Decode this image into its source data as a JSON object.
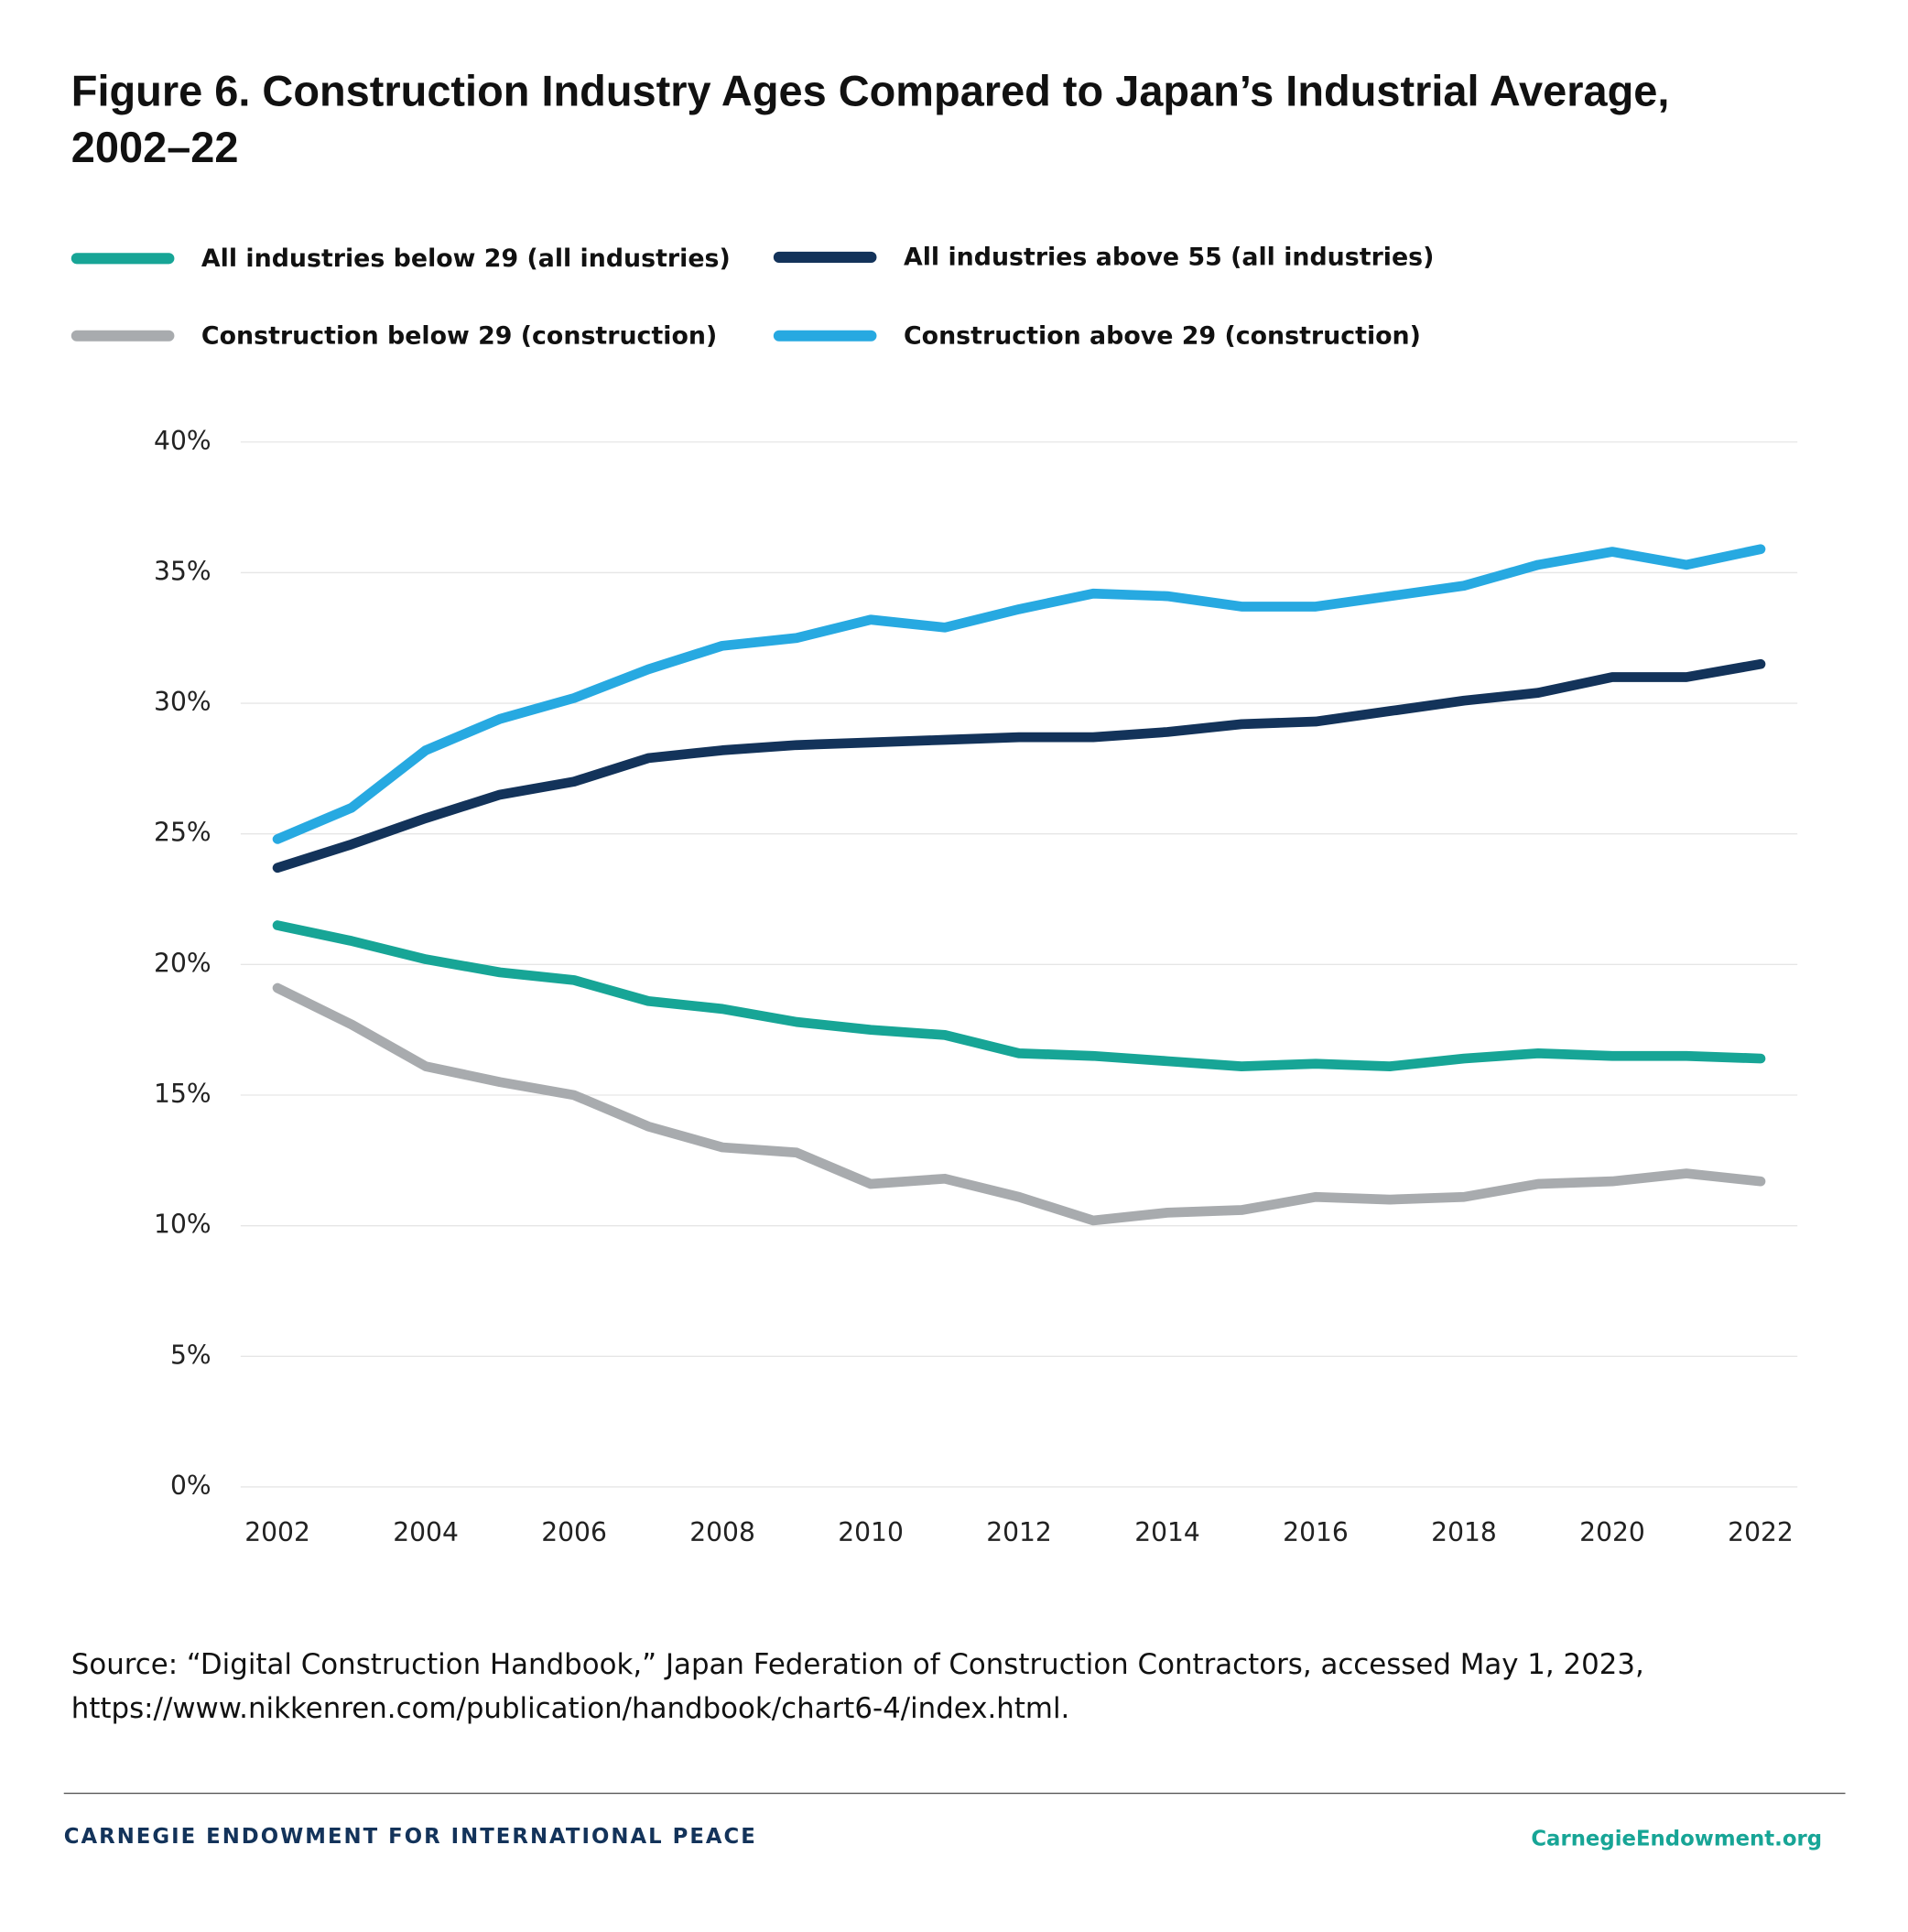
{
  "chart_data": {
    "type": "line",
    "title": "Figure 6. Construction Industry Ages Compared to Japan’s Industrial Average, 2002–22",
    "x": [
      2002,
      2003,
      2004,
      2005,
      2006,
      2007,
      2008,
      2009,
      2010,
      2011,
      2012,
      2013,
      2014,
      2015,
      2016,
      2017,
      2018,
      2019,
      2020,
      2021,
      2022
    ],
    "series": [
      {
        "name": "All industries below 29 (all industries)",
        "color": "#17a596",
        "values": [
          21.5,
          20.9,
          20.2,
          19.7,
          19.4,
          18.6,
          18.3,
          17.8,
          17.5,
          17.3,
          16.6,
          16.5,
          16.3,
          16.1,
          16.2,
          16.1,
          16.4,
          16.6,
          16.5,
          16.5,
          16.4
        ]
      },
      {
        "name": "All industries above 55 (all industries)",
        "color": "#13335a",
        "values": [
          23.7,
          24.6,
          25.6,
          26.5,
          27.0,
          27.9,
          28.2,
          28.4,
          28.5,
          28.6,
          28.7,
          28.7,
          28.9,
          29.2,
          29.3,
          29.7,
          30.1,
          30.4,
          31.0,
          31.0,
          31.5
        ]
      },
      {
        "name": "Construction below 29 (construction)",
        "color": "#a8abae",
        "values": [
          19.1,
          17.7,
          16.1,
          15.5,
          15.0,
          13.8,
          13.0,
          12.8,
          11.6,
          11.8,
          11.1,
          10.2,
          10.5,
          10.6,
          11.1,
          11.0,
          11.1,
          11.6,
          11.7,
          12.0,
          11.7
        ]
      },
      {
        "name": "Construction above 29 (construction)",
        "color": "#27a9e1",
        "values": [
          24.8,
          26.0,
          28.2,
          29.4,
          30.2,
          31.3,
          32.2,
          32.5,
          33.2,
          32.9,
          33.6,
          34.2,
          34.1,
          33.7,
          33.7,
          34.1,
          34.5,
          35.3,
          35.8,
          35.3,
          35.9
        ]
      }
    ],
    "xlim": [
      2002,
      2022
    ],
    "xticks": [
      2002,
      2004,
      2006,
      2008,
      2010,
      2012,
      2014,
      2016,
      2018,
      2020,
      2022
    ],
    "ylim": [
      0,
      40
    ],
    "yticks": [
      {
        "value": 0,
        "label": "0%"
      },
      {
        "value": 5,
        "label": "5%"
      },
      {
        "value": 10,
        "label": "10%"
      },
      {
        "value": 15,
        "label": "15%"
      },
      {
        "value": 20,
        "label": "20%"
      },
      {
        "value": 25,
        "label": "25%"
      },
      {
        "value": 30,
        "label": "30%"
      },
      {
        "value": 35,
        "label": "35%"
      },
      {
        "value": 40,
        "label": "40%"
      }
    ],
    "grid": true,
    "source": "Source: “Digital Construction Handbook,” Japan Federation of Construction Contractors, accessed May 1, 2023, https://www.nikkenren.com/publication/handbook/chart6-4/index.html.",
    "footer_left": "CARNEGIE ENDOWMENT FOR INTERNATIONAL PEACE",
    "footer_right": "CarnegieEndowment.org"
  }
}
